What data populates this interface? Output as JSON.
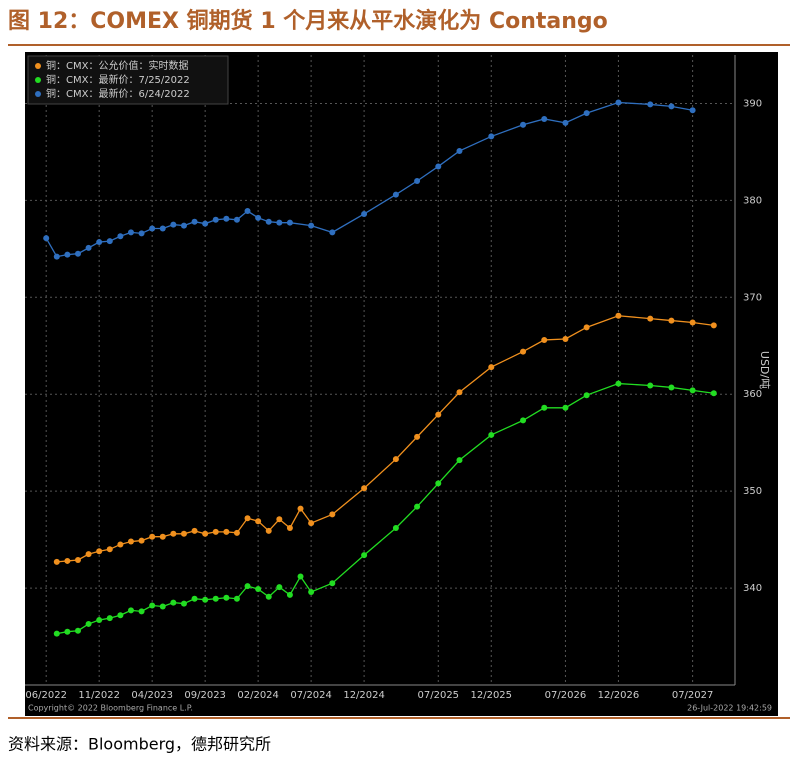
{
  "chart_data": {
    "type": "line",
    "title": "图 12：COMEX 铜期货 1 个月来从平水演化为 Contango",
    "y_label": "USD/吨",
    "source": "资料来源：Bloomberg，德邦研究所",
    "copyright": "Copyright© 2022 Bloomberg Finance L.P.",
    "timestamp": "26-Jul-2022 19:42:59",
    "xlim": [
      "04/2022",
      "11/2027"
    ],
    "xticks": [
      "06/2022",
      "11/2022",
      "04/2023",
      "09/2023",
      "02/2024",
      "07/2024",
      "12/2024",
      "07/2025",
      "12/2025",
      "07/2026",
      "12/2026",
      "07/2027"
    ],
    "ylim": [
      330,
      395
    ],
    "yticks": [
      340,
      350,
      360,
      370,
      380,
      390
    ],
    "grid": true,
    "legend": "top-left",
    "series": [
      {
        "name": "铜：CMX：公允价值：实时数据",
        "color": "#f0901e",
        "x": [
          "07/2022",
          "08/2022",
          "09/2022",
          "10/2022",
          "11/2022",
          "12/2022",
          "01/2023",
          "02/2023",
          "03/2023",
          "04/2023",
          "05/2023",
          "06/2023",
          "07/2023",
          "08/2023",
          "09/2023",
          "10/2023",
          "11/2023",
          "12/2023",
          "01/2024",
          "02/2024",
          "03/2024",
          "04/2024",
          "05/2024",
          "06/2024",
          "07/2024",
          "09/2024",
          "12/2024",
          "03/2025",
          "05/2025",
          "07/2025",
          "09/2025",
          "12/2025",
          "03/2026",
          "05/2026",
          "07/2026",
          "09/2026",
          "12/2026",
          "03/2027",
          "05/2027",
          "07/2027",
          "09/2027"
        ],
        "values": [
          342.7,
          342.8,
          342.9,
          343.5,
          343.8,
          344.0,
          344.5,
          344.8,
          344.9,
          345.3,
          345.3,
          345.6,
          345.6,
          345.9,
          345.6,
          345.8,
          345.8,
          345.7,
          347.2,
          346.9,
          345.9,
          347.1,
          346.2,
          348.2,
          346.7,
          347.6,
          350.3,
          353.3,
          355.6,
          357.9,
          360.2,
          362.8,
          364.4,
          365.6,
          365.7,
          366.9,
          368.1,
          367.8,
          367.6,
          367.4,
          367.1
        ]
      },
      {
        "name": "铜：CMX：最新价：7/25/2022",
        "color": "#22dd22",
        "x": [
          "07/2022",
          "08/2022",
          "09/2022",
          "10/2022",
          "11/2022",
          "12/2022",
          "01/2023",
          "02/2023",
          "03/2023",
          "04/2023",
          "05/2023",
          "06/2023",
          "07/2023",
          "08/2023",
          "09/2023",
          "10/2023",
          "11/2023",
          "12/2023",
          "01/2024",
          "02/2024",
          "03/2024",
          "04/2024",
          "05/2024",
          "06/2024",
          "07/2024",
          "09/2024",
          "12/2024",
          "03/2025",
          "05/2025",
          "07/2025",
          "09/2025",
          "12/2025",
          "03/2026",
          "05/2026",
          "07/2026",
          "09/2026",
          "12/2026",
          "03/2027",
          "05/2027",
          "07/2027",
          "09/2027"
        ],
        "values": [
          335.3,
          335.5,
          335.6,
          336.3,
          336.7,
          336.9,
          337.2,
          337.7,
          337.6,
          338.2,
          338.1,
          338.5,
          338.4,
          338.9,
          338.8,
          338.9,
          339.0,
          338.9,
          340.2,
          339.9,
          339.1,
          340.1,
          339.3,
          341.2,
          339.6,
          340.5,
          343.4,
          346.2,
          348.4,
          350.8,
          353.2,
          355.8,
          357.3,
          358.6,
          358.6,
          359.9,
          361.1,
          360.9,
          360.7,
          360.4,
          360.1
        ]
      },
      {
        "name": "铜：CMX：最新价：6/24/2022",
        "color": "#2f6fbf",
        "x": [
          "06/2022",
          "07/2022",
          "08/2022",
          "09/2022",
          "10/2022",
          "11/2022",
          "12/2022",
          "01/2023",
          "02/2023",
          "03/2023",
          "04/2023",
          "05/2023",
          "06/2023",
          "07/2023",
          "08/2023",
          "09/2023",
          "10/2023",
          "11/2023",
          "12/2023",
          "01/2024",
          "02/2024",
          "03/2024",
          "04/2024",
          "05/2024",
          "07/2024",
          "09/2024",
          "12/2024",
          "03/2025",
          "05/2025",
          "07/2025",
          "09/2025",
          "12/2025",
          "03/2026",
          "05/2026",
          "07/2026",
          "09/2026",
          "12/2026",
          "03/2027",
          "05/2027",
          "07/2027"
        ],
        "values": [
          376.1,
          374.2,
          374.4,
          374.5,
          375.1,
          375.7,
          375.8,
          376.3,
          376.7,
          376.6,
          377.1,
          377.1,
          377.5,
          377.4,
          377.8,
          377.6,
          378.0,
          378.1,
          378.0,
          378.9,
          378.2,
          377.8,
          377.7,
          377.7,
          377.4,
          376.7,
          378.6,
          380.6,
          382.0,
          383.5,
          385.1,
          386.6,
          387.8,
          388.4,
          388.0,
          389.0,
          390.1,
          389.9,
          389.7,
          389.3
        ]
      }
    ]
  }
}
